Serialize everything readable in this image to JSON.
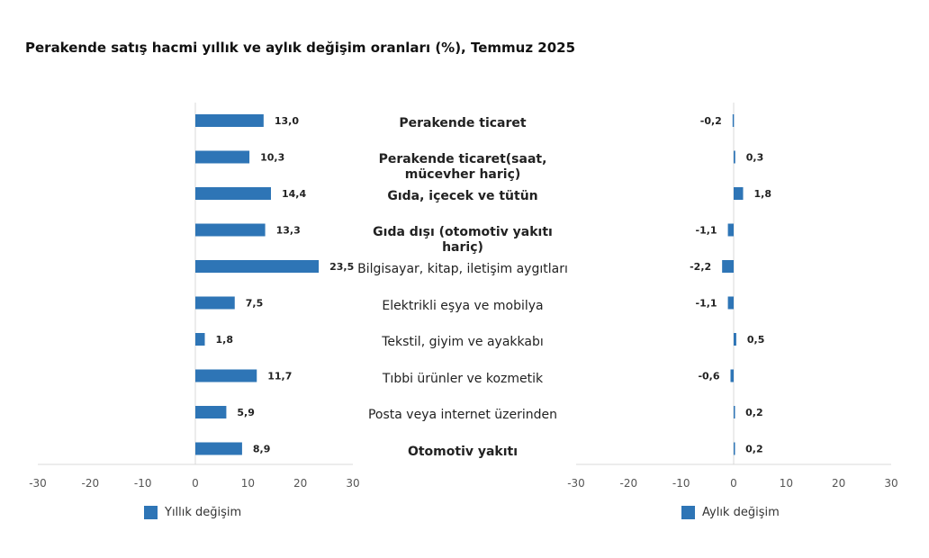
{
  "title": "Perakende satış hacmi yıllık ve aylık değişim oranları (%), Temmuz 2025",
  "colors": {
    "bar": "#2E75B6",
    "axis": "#d9d9d9"
  },
  "chart_data": [
    {
      "type": "bar",
      "orientation": "horizontal",
      "categories": [
        "Perakende ticaret",
        "Perakende ticaret(saat, mücevher hariç)",
        "Gıda, içecek ve tütün",
        "Gıda dışı (otomotiv yakıtı hariç)",
        "Bilgisayar, kitap, iletişim aygıtları",
        "Elektrikli eşya ve mobilya",
        "Tekstil, giyim ve ayakkabı",
        "Tıbbi ürünler ve kozmetik",
        "Posta veya internet üzerinden",
        "Otomotiv yakıtı"
      ],
      "bold_categories": [
        0,
        1,
        2,
        3,
        9
      ],
      "series": [
        {
          "name": "Yıllık değişim",
          "values": [
            13.0,
            10.3,
            14.4,
            13.3,
            23.5,
            7.5,
            1.8,
            11.7,
            5.9,
            8.9
          ]
        }
      ],
      "data_labels": [
        "13,0",
        "10,3",
        "14,4",
        "13,3",
        "23,5",
        "7,5",
        "1,8",
        "11,7",
        "5,9",
        "8,9"
      ],
      "xlim": [
        -30,
        30
      ],
      "xticks": [
        "-30",
        "-20",
        "-10",
        "0",
        "10",
        "20",
        "30"
      ],
      "grid": false,
      "legend": "bottom"
    },
    {
      "type": "bar",
      "orientation": "horizontal",
      "categories": [
        "Perakende ticaret",
        "Perakende ticaret(saat, mücevher hariç)",
        "Gıda, içecek ve tütün",
        "Gıda dışı (otomotiv yakıtı hariç)",
        "Bilgisayar, kitap, iletişim aygıtları",
        "Elektrikli eşya ve mobilya",
        "Tekstil, giyim ve ayakkabı",
        "Tıbbi ürünler ve kozmetik",
        "Posta veya internet üzerinden",
        "Otomotiv yakıtı"
      ],
      "series": [
        {
          "name": "Aylık değişim",
          "values": [
            -0.2,
            0.3,
            1.8,
            -1.1,
            -2.2,
            -1.1,
            0.5,
            -0.6,
            0.2,
            0.2
          ]
        }
      ],
      "data_labels": [
        "-0,2",
        "0,3",
        "1,8",
        "-1,1",
        "-2,2",
        "-1,1",
        "0,5",
        "-0,6",
        "0,2",
        "0,2"
      ],
      "xlim": [
        -30,
        30
      ],
      "xticks": [
        "-30",
        "-20",
        "-10",
        "0",
        "10",
        "20",
        "30"
      ],
      "grid": false,
      "legend": "bottom"
    }
  ]
}
